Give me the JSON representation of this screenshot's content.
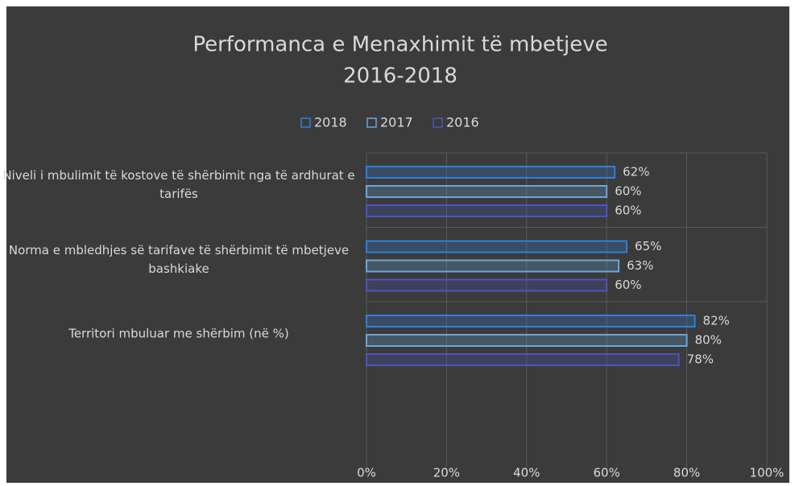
{
  "chart_data": {
    "type": "bar",
    "orientation": "horizontal",
    "title": [
      "Performanca e Menaxhimit të mbetjeve",
      "2016-2018"
    ],
    "categories": [
      "Niveli i mbulimit të kostove të shërbimit nga të ardhurat e tarifës",
      "Norma e mbledhjes së tarifave të shërbimit të mbetjeve bashkiake",
      "Territori mbuluar me shërbim (në %)"
    ],
    "series": [
      {
        "name": "2018",
        "color": "#2f7fe0",
        "values": [
          62,
          65,
          82
        ],
        "value_labels": [
          "62%",
          "65%",
          "82%"
        ]
      },
      {
        "name": "2017",
        "color": "#6aa6dc",
        "values": [
          60,
          63,
          80
        ],
        "value_labels": [
          "60%",
          "63%",
          "80%"
        ]
      },
      {
        "name": "2016",
        "color": "#4a55c0",
        "values": [
          60,
          60,
          78
        ],
        "value_labels": [
          "60%",
          "60%",
          "78%"
        ]
      }
    ],
    "xlim": [
      0,
      100
    ],
    "xticks": [
      {
        "value": 0,
        "label": "0%"
      },
      {
        "value": 20,
        "label": "20%"
      },
      {
        "value": 40,
        "label": "40%"
      },
      {
        "value": 60,
        "label": "60%"
      },
      {
        "value": 80,
        "label": "80%"
      },
      {
        "value": 100,
        "label": "100%"
      }
    ],
    "grid": true,
    "legend": "top"
  }
}
